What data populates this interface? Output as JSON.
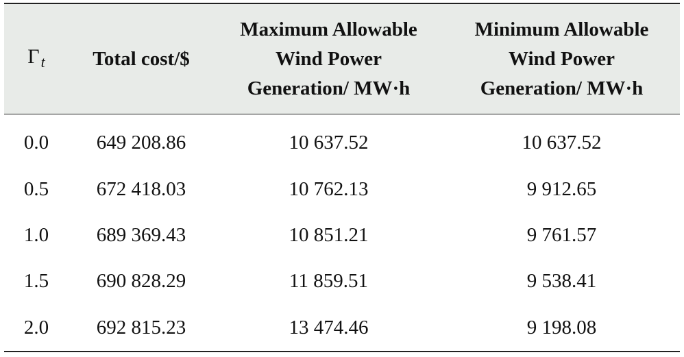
{
  "table": {
    "headers": {
      "gamma_symbol": "Γ",
      "gamma_subscript": "t",
      "total_cost": "Total cost/$",
      "max_wind": [
        "Maximum Allowable",
        "Wind Power",
        "Generation/ MW·h"
      ],
      "min_wind": [
        "Minimum Allowable",
        "Wind Power",
        "Generation/ MW·h"
      ]
    },
    "rows": [
      {
        "gamma": "0.0",
        "total_cost": "649 208.86",
        "max_wind": "10 637.52",
        "min_wind": "10 637.52"
      },
      {
        "gamma": "0.5",
        "total_cost": "672 418.03",
        "max_wind": "10 762.13",
        "min_wind": "9 912.65"
      },
      {
        "gamma": "1.0",
        "total_cost": "689 369.43",
        "max_wind": "10 851.21",
        "min_wind": "9 761.57"
      },
      {
        "gamma": "1.5",
        "total_cost": "690 828.29",
        "max_wind": "11 859.51",
        "min_wind": "9 538.41"
      },
      {
        "gamma": "2.0",
        "total_cost": "692 815.23",
        "max_wind": "13 474.46",
        "min_wind": "9 198.08"
      }
    ]
  }
}
